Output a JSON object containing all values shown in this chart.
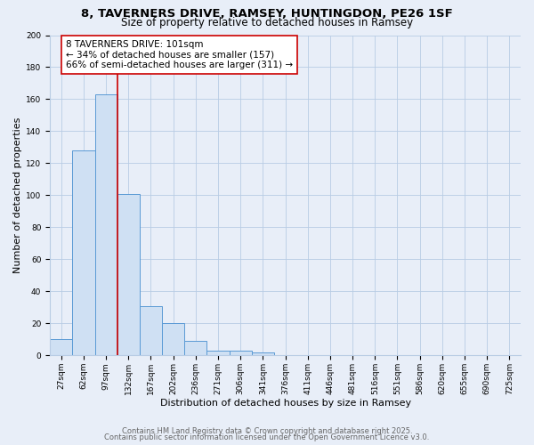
{
  "title1": "8, TAVERNERS DRIVE, RAMSEY, HUNTINGDON, PE26 1SF",
  "title2": "Size of property relative to detached houses in Ramsey",
  "xlabel": "Distribution of detached houses by size in Ramsey",
  "ylabel": "Number of detached properties",
  "bar_labels": [
    "27sqm",
    "62sqm",
    "97sqm",
    "132sqm",
    "167sqm",
    "202sqm",
    "236sqm",
    "271sqm",
    "306sqm",
    "341sqm",
    "376sqm",
    "411sqm",
    "446sqm",
    "481sqm",
    "516sqm",
    "551sqm",
    "586sqm",
    "620sqm",
    "655sqm",
    "690sqm",
    "725sqm"
  ],
  "bar_values": [
    10,
    128,
    163,
    101,
    31,
    20,
    9,
    3,
    3,
    2,
    0,
    0,
    0,
    0,
    0,
    0,
    0,
    0,
    0,
    0,
    0
  ],
  "bar_color": "#cfe0f3",
  "bar_edge_color": "#5a9ad5",
  "vline_x": 2.5,
  "vline_color": "#cc0000",
  "annotation_text": "8 TAVERNERS DRIVE: 101sqm\n← 34% of detached houses are smaller (157)\n66% of semi-detached houses are larger (311) →",
  "annotation_box_color": "#ffffff",
  "annotation_box_edge": "#cc0000",
  "ylim": [
    0,
    200
  ],
  "yticks": [
    0,
    20,
    40,
    60,
    80,
    100,
    120,
    140,
    160,
    180,
    200
  ],
  "background_color": "#e8eef8",
  "plot_bg_color": "#e8eef8",
  "grid_color": "#b8cce4",
  "footer1": "Contains HM Land Registry data © Crown copyright and database right 2025.",
  "footer2": "Contains public sector information licensed under the Open Government Licence v3.0.",
  "title_fontsize": 9.5,
  "subtitle_fontsize": 8.5,
  "axis_label_fontsize": 8,
  "tick_fontsize": 6.5,
  "annotation_fontsize": 7.5,
  "footer_fontsize": 6
}
